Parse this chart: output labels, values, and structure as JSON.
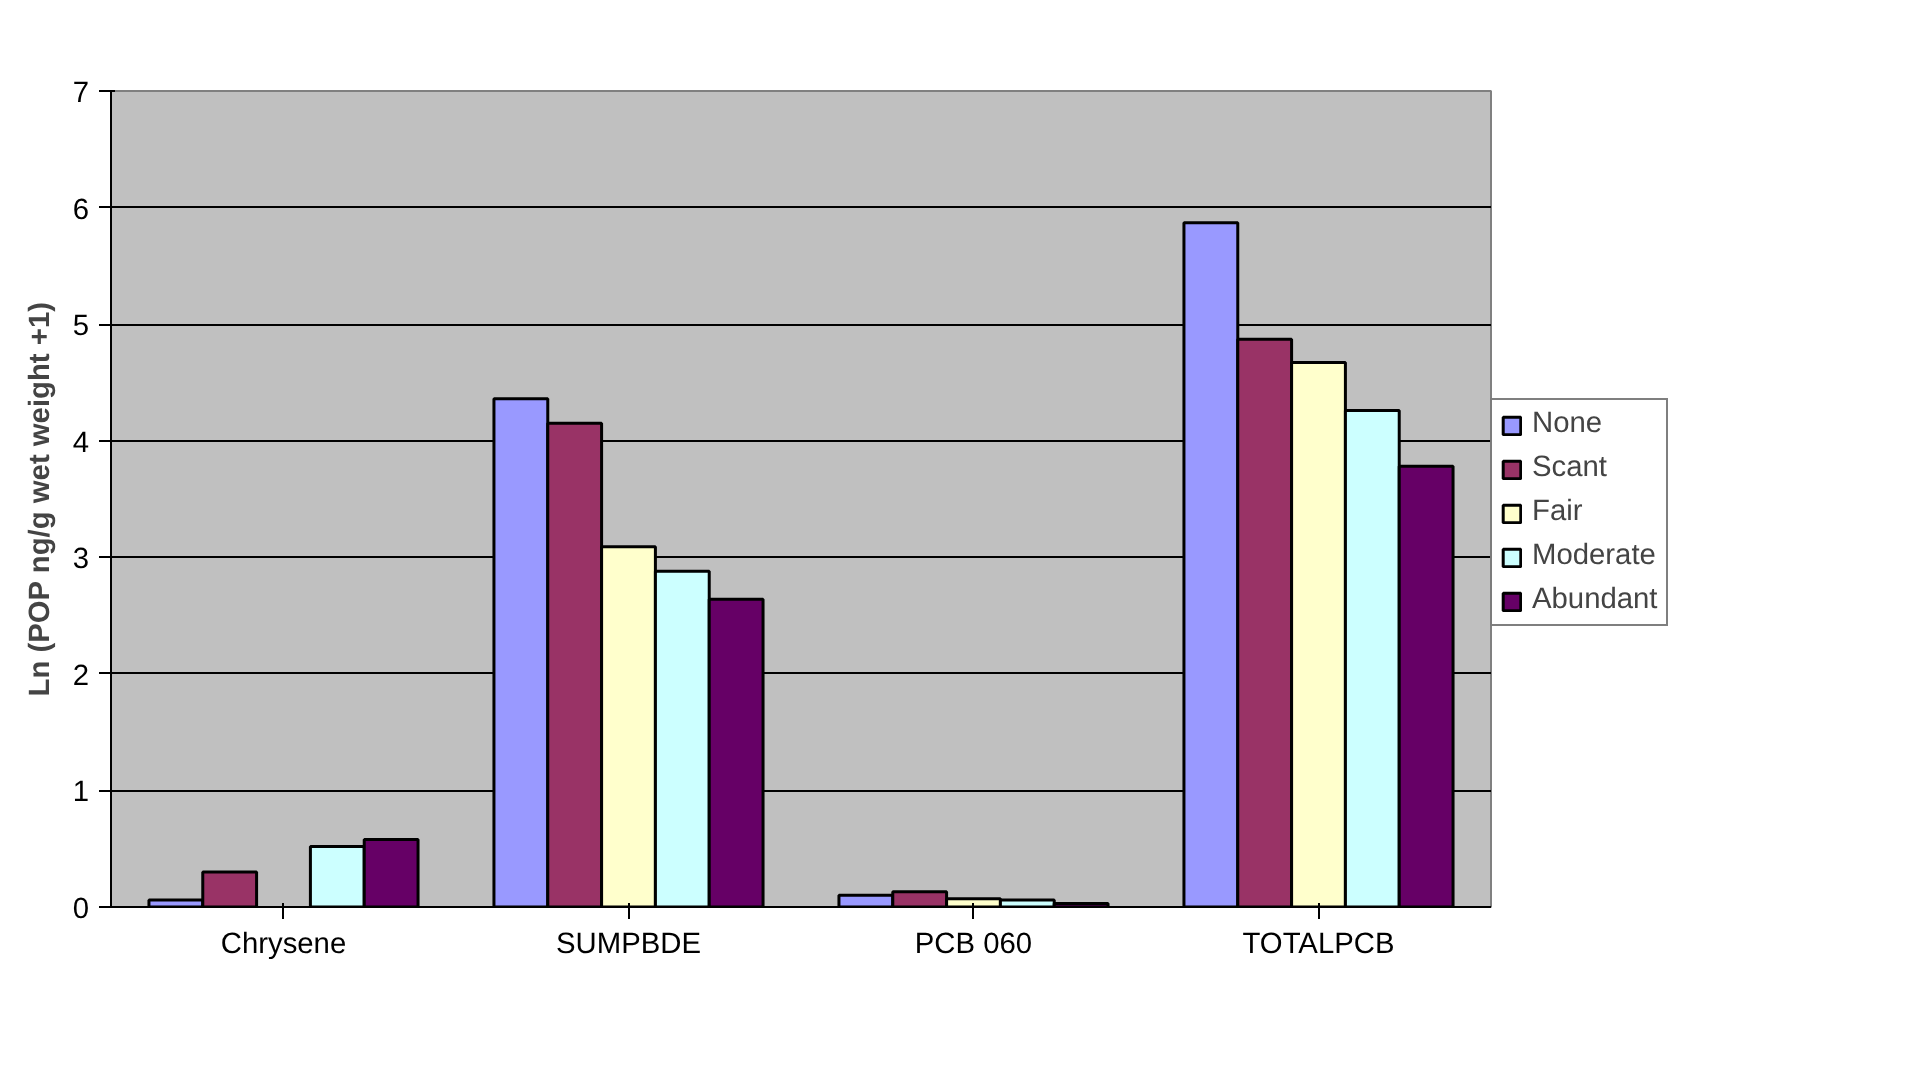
{
  "chart_data": {
    "type": "bar",
    "ylabel": "Ln (POP ng/g wet weight +1)",
    "categories": [
      "Chrysene",
      "SUMPBDE",
      "PCB 060",
      "TOTALPCB"
    ],
    "series": [
      {
        "name": "None",
        "color": "#9999ff",
        "values": [
          0.06,
          4.36,
          0.1,
          5.87
        ]
      },
      {
        "name": "Scant",
        "color": "#993366",
        "values": [
          0.3,
          4.15,
          0.13,
          4.87
        ]
      },
      {
        "name": "Fair",
        "color": "#ffffcc",
        "values": [
          null,
          3.09,
          0.07,
          4.67
        ]
      },
      {
        "name": "Moderate",
        "color": "#ccffff",
        "values": [
          0.52,
          2.88,
          0.06,
          4.26
        ]
      },
      {
        "name": "Abundant",
        "color": "#660066",
        "values": [
          0.58,
          2.64,
          0.03,
          3.78
        ]
      }
    ],
    "ylim": [
      0,
      7
    ],
    "yticks": [
      0,
      1,
      2,
      3,
      4,
      5,
      6,
      7
    ],
    "grid": "y",
    "legend": "right"
  }
}
